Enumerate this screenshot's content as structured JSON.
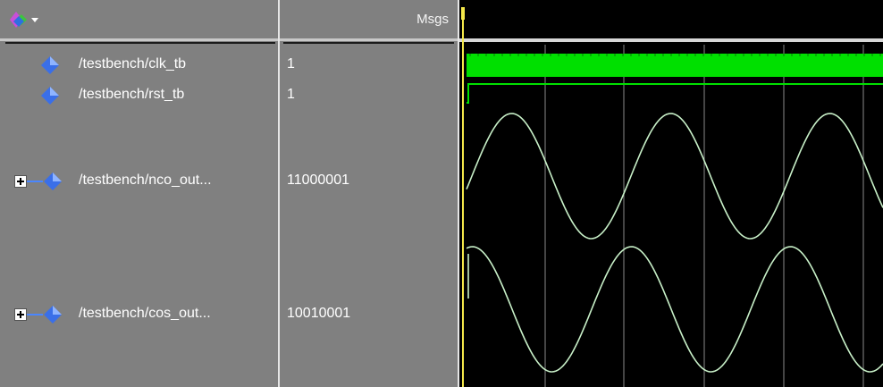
{
  "header": {
    "msgs_label": "Msgs",
    "toolbar_icon": "wave-signal-icon"
  },
  "signals": [
    {
      "name": "/testbench/clk_tb",
      "value": "1",
      "type": "clock",
      "icon": "signal-diamond-icon",
      "expandable": false
    },
    {
      "name": "/testbench/rst_tb",
      "value": "1",
      "type": "logic",
      "icon": "signal-diamond-icon",
      "expandable": false
    },
    {
      "name": "/testbench/nco_out...",
      "value": "11000001",
      "type": "analog-sine",
      "icon": "signal-diamond-icon",
      "expandable": true
    },
    {
      "name": "/testbench/cos_out...",
      "value": "10010001",
      "type": "analog-cosine",
      "icon": "signal-diamond-icon",
      "expandable": true
    }
  ],
  "colors": {
    "panel_gray": "#808080",
    "wave_bg": "#000000",
    "digital_green": "#00e000",
    "analog_wave": "#c8f0c8",
    "cursor_yellow": "#f4e84a",
    "grid_line": "#8a8a8a"
  }
}
